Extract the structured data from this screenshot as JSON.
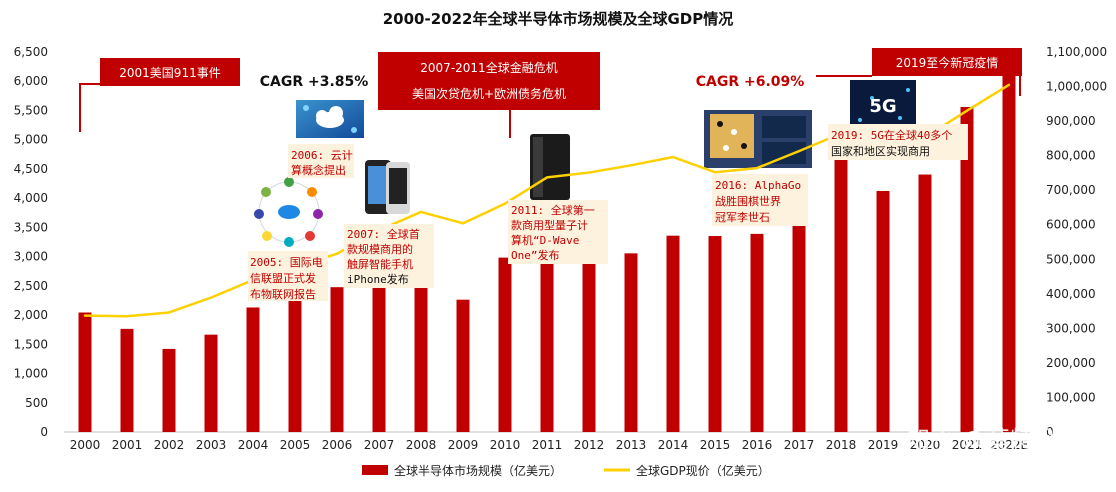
{
  "chart_data": {
    "type": "bar+line",
    "title": "2000-2022年全球半导体市场规模及全球GDP情况",
    "categories": [
      "2000",
      "2001",
      "2002",
      "2003",
      "2004",
      "2005",
      "2006",
      "2007",
      "2008",
      "2009",
      "2010",
      "2011",
      "2012",
      "2013",
      "2014",
      "2015",
      "2016",
      "2017",
      "2018",
      "2019",
      "2020",
      "2021",
      "2022E"
    ],
    "series": [
      {
        "name": "全球半导体市场规模（亿美元）",
        "type": "bar",
        "axis": "left",
        "color": "#c00000",
        "values": [
          2044,
          1764,
          1421,
          1665,
          2130,
          2275,
          2477,
          2556,
          2486,
          2263,
          2983,
          2995,
          2916,
          3056,
          3358,
          3352,
          3389,
          4122,
          4688,
          4123,
          4404,
          5559,
          6100
        ]
      },
      {
        "name": "全球GDP现价（亿美元）",
        "type": "line",
        "axis": "right",
        "color": "#ffd000",
        "values": [
          337000,
          335000,
          346000,
          389000,
          440000,
          477000,
          516000,
          584000,
          637000,
          604000,
          661000,
          737000,
          751000,
          772000,
          796000,
          752000,
          764000,
          813000,
          864000,
          878000,
          853000,
          930000,
          1005000
        ]
      }
    ],
    "y_left": {
      "range": [
        0,
        6500
      ],
      "ticks": [
        "0",
        "500",
        "1,000",
        "1,500",
        "2,000",
        "2,500",
        "3,000",
        "3,500",
        "4,000",
        "4,500",
        "5,000",
        "5,500",
        "6,000",
        "6,500"
      ]
    },
    "y_right": {
      "range": [
        0,
        1100000
      ],
      "ticks": [
        "0",
        "100,000",
        "200,000",
        "300,000",
        "400,000",
        "500,000",
        "600,000",
        "700,000",
        "800,000",
        "900,000",
        "1,000,000",
        "1,100,000"
      ]
    },
    "x_ticks": [
      "2000",
      "2001",
      "2002",
      "2003",
      "2004",
      "2005",
      "2006",
      "2007",
      "2008",
      "2009",
      "2010",
      "2011",
      "2012",
      "2013",
      "2014",
      "2015",
      "2016",
      "2017",
      "2018",
      "2019",
      "2020",
      "2021",
      "2022E"
    ],
    "grid": false,
    "legend_position": "bottom",
    "annotations": {
      "banners": [
        "2001美国911事件",
        "2007-2011全球金融危机",
        "美国次贷危机+欧洲债务危机",
        "2019至今新冠疫情"
      ],
      "cagr": [
        "CAGR +3.85%",
        "CAGR +6.09%"
      ],
      "notes": [
        [
          "2005: 国际电",
          "信联盟正式发",
          "布物联网报告"
        ],
        [
          "2006: 云计",
          "算概念提出"
        ],
        [
          "2007: 全球首",
          "款规模商用的",
          "触屏智能手机",
          "iPhone发布"
        ],
        [
          "2011: 全球第一",
          "款商用型量子计",
          "算机“D-Wave",
          "One”发布"
        ],
        [
          "2016: AlphaGo",
          "战胜围棋世界",
          "冠军李世石"
        ],
        [
          "2019: 5G在全球40多个",
          "国家和地区实现商用"
        ]
      ],
      "image_labels": [
        "5G"
      ]
    },
    "watermark": "知乎 @莫特猁"
  },
  "colors": {
    "bar": "#c00000",
    "line": "#ffd000",
    "banner": "#c00000",
    "note_bg": "#fdf2dd"
  },
  "icons": [
    "cloud-computing-icon",
    "iot-network-icon",
    "iphone-icon",
    "d-wave-computer-icon",
    "alphago-board-icon",
    "5g-globe-icon"
  ]
}
